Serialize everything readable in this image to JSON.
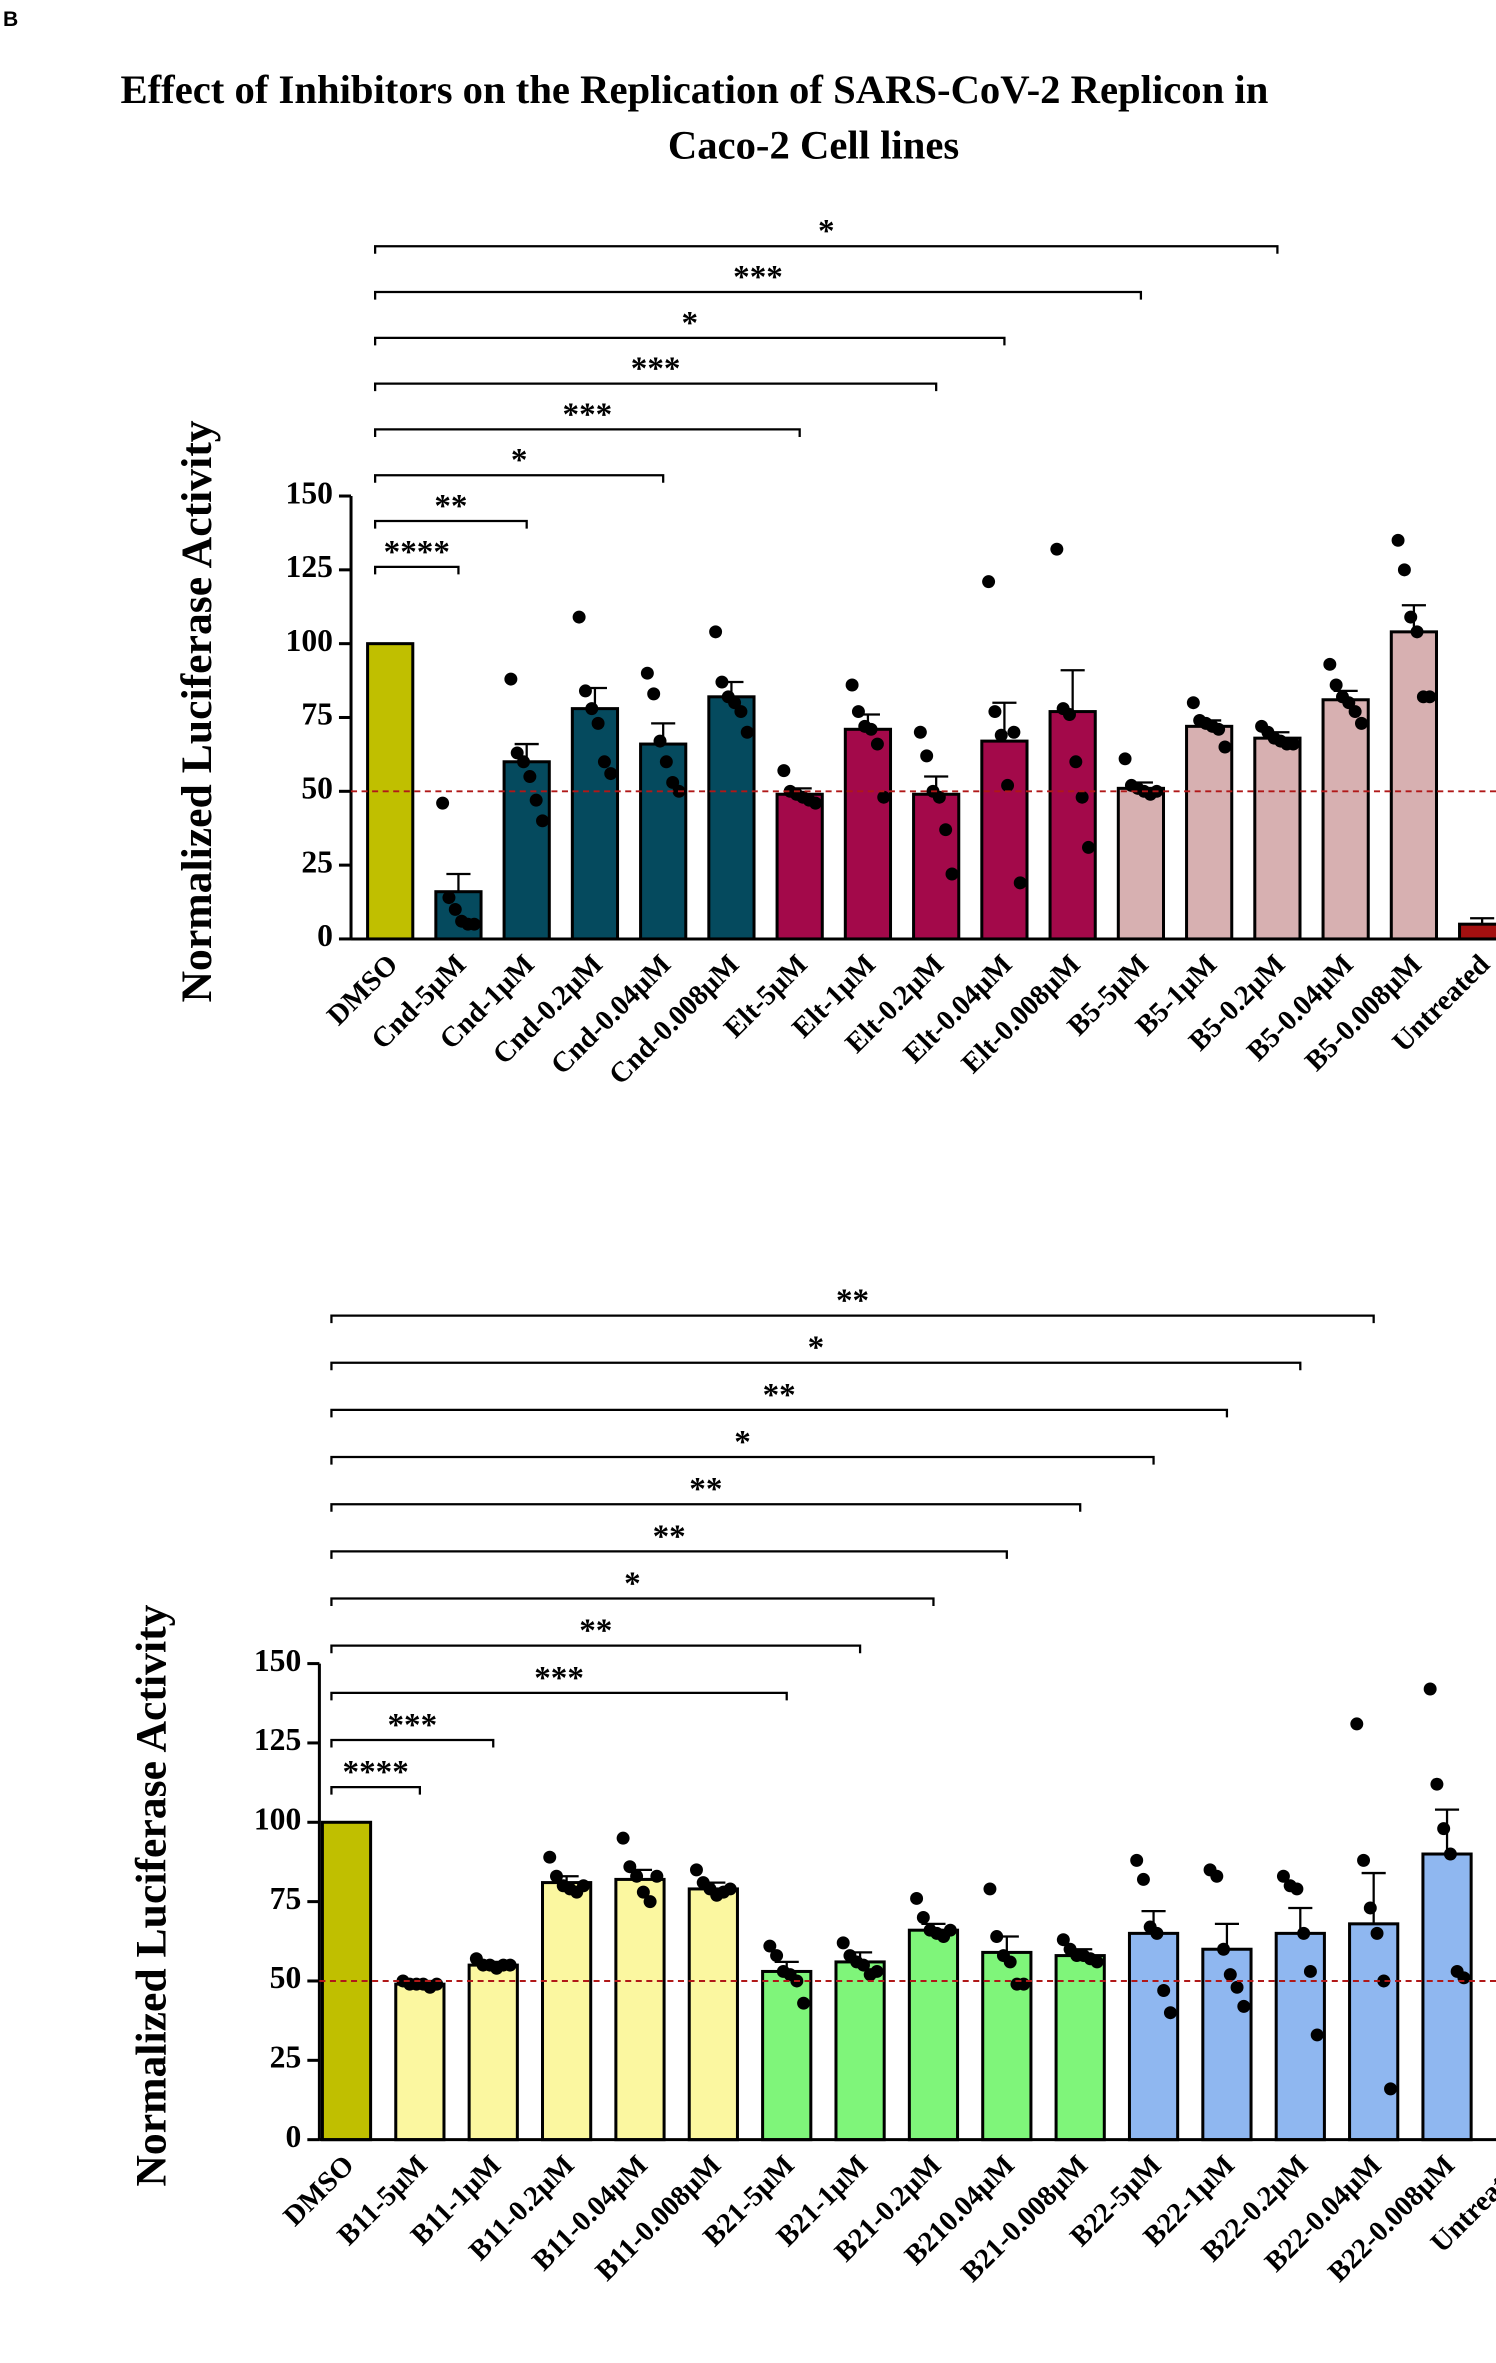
{
  "panel_label": "B",
  "chart_data": [
    {
      "type": "bar",
      "title": [
        "Effect of Inhibitors on the Replication of SARS-CoV-2 Replicon in",
        "Caco-2 Cell lines"
      ],
      "y_label": "Normalized Luciferase Activity",
      "categories": [
        "DMSO",
        "Cnd-5μM",
        "Cnd-1μM",
        "Cnd-0.2μM",
        "Cnd-0.04μM",
        "Cnd-0.008μM",
        "Elt-5μM",
        "Elt-1μM",
        "Elt-0.2μM",
        "Elt-0.04μM",
        "Elt-0.008μM",
        "B5-5μM",
        "B5-1μM",
        "B5-0.2μM",
        "B5-0.04μM",
        "B5-0.008μM",
        "Untreated"
      ],
      "values": [
        100,
        16,
        60,
        78,
        66,
        82,
        49,
        71,
        49,
        67,
        77,
        51,
        72,
        68,
        81,
        104,
        5
      ],
      "errors": [
        0,
        6,
        6,
        7,
        7,
        5,
        2,
        5,
        6,
        13,
        14,
        2,
        2,
        2,
        3,
        9,
        2
      ],
      "colors": [
        "#c0bf00",
        "#054a5e",
        "#054a5e",
        "#054a5e",
        "#054a5e",
        "#054a5e",
        "#a3094a",
        "#a3094a",
        "#a3094a",
        "#a3094a",
        "#a3094a",
        "#d7b0b1",
        "#d7b0b1",
        "#d7b0b1",
        "#d7b0b1",
        "#d7b0b1",
        "#a31010"
      ],
      "points": [
        [],
        [
          46,
          14,
          10,
          6,
          5,
          5
        ],
        [
          88,
          63,
          60,
          55,
          47,
          40
        ],
        [
          109,
          84,
          78,
          73,
          60,
          56
        ],
        [
          90,
          83,
          67,
          60,
          53,
          50
        ],
        [
          104,
          87,
          82,
          80,
          77,
          70
        ],
        [
          57,
          50,
          49,
          48,
          47,
          46
        ],
        [
          86,
          77,
          72,
          71,
          66,
          48
        ],
        [
          70,
          62,
          50,
          48,
          37,
          22
        ],
        [
          121,
          77,
          69,
          52,
          70,
          19
        ],
        [
          132,
          78,
          76,
          60,
          48,
          31
        ],
        [
          61,
          52,
          51,
          50,
          49,
          50
        ],
        [
          80,
          74,
          73,
          72,
          71,
          65
        ],
        [
          72,
          70,
          68,
          67,
          66,
          66
        ],
        [
          93,
          86,
          82,
          80,
          77,
          73
        ],
        [
          135,
          125,
          109,
          104,
          82,
          82
        ],
        []
      ],
      "reference_line": 50,
      "comparisons": [
        {
          "to": 1,
          "label": "****"
        },
        {
          "to": 2,
          "label": "**"
        },
        {
          "to": 4,
          "label": "*"
        },
        {
          "to": 6,
          "label": "***"
        },
        {
          "to": 8,
          "label": "***"
        },
        {
          "to": 9,
          "label": "*"
        },
        {
          "to": 11,
          "label": "***"
        },
        {
          "to": 13,
          "label": "*"
        }
      ],
      "ylim": [
        0,
        150
      ],
      "yticks": [
        0,
        25,
        50,
        75,
        100,
        125,
        150
      ]
    },
    {
      "type": "bar",
      "y_label": "Normalized Luciferase Activity",
      "categories": [
        "DMSO",
        "B11-5μM",
        "B11-1μM",
        "B11-0.2μM",
        "B11-0.04μM",
        "B11-0.008μM",
        "B21-5μM",
        "B21-1μM",
        "B21-0.2μM",
        "B210.04μM",
        "B21-0.008μM",
        "B22-5μM",
        "B22-1μM",
        "B22-0.2μM",
        "B22-0.04μM",
        "B22-0.008μM",
        "Untreated"
      ],
      "values": [
        100,
        49,
        55,
        81,
        82,
        79,
        53,
        56,
        66,
        59,
        58,
        65,
        60,
        65,
        68,
        90,
        null
      ],
      "errors": [
        0,
        1,
        1,
        2,
        3,
        2,
        3,
        3,
        2,
        5,
        2,
        7,
        8,
        8,
        16,
        14,
        null
      ],
      "colors": [
        "#c0bf00",
        "#fbf7a0",
        "#fbf7a0",
        "#fbf7a0",
        "#fbf7a0",
        "#fbf7a0",
        "#7ff57a",
        "#7ff57a",
        "#7ff57a",
        "#7ff57a",
        "#7ff57a",
        "#8fb7f0",
        "#8fb7f0",
        "#8fb7f0",
        "#8fb7f0",
        "#8fb7f0",
        null
      ],
      "points": [
        [],
        [
          50,
          49,
          49,
          49,
          48,
          49
        ],
        [
          57,
          55,
          55,
          54,
          55,
          55
        ],
        [
          89,
          83,
          80,
          79,
          78,
          80
        ],
        [
          95,
          86,
          83,
          78,
          75,
          83
        ],
        [
          85,
          81,
          79,
          77,
          78,
          79
        ],
        [
          61,
          58,
          53,
          52,
          50,
          43
        ],
        [
          62,
          58,
          56,
          55,
          52,
          53
        ],
        [
          76,
          70,
          66,
          65,
          64,
          66
        ],
        [
          79,
          64,
          58,
          56,
          49,
          49
        ],
        [
          63,
          60,
          58,
          58,
          57,
          56
        ],
        [
          88,
          82,
          67,
          65,
          47,
          40
        ],
        [
          85,
          83,
          60,
          52,
          48,
          42
        ],
        [
          83,
          80,
          79,
          65,
          53,
          33
        ],
        [
          131,
          88,
          73,
          65,
          50,
          16
        ],
        [
          142,
          112,
          98,
          90,
          53,
          51
        ],
        []
      ],
      "reference_line": 50,
      "comparisons": [
        {
          "to": 1,
          "label": "****"
        },
        {
          "to": 2,
          "label": "***"
        },
        {
          "to": 6,
          "label": "***"
        },
        {
          "to": 7,
          "label": "**"
        },
        {
          "to": 8,
          "label": "*"
        },
        {
          "to": 9,
          "label": "**"
        },
        {
          "to": 10,
          "label": "**"
        },
        {
          "to": 11,
          "label": "*"
        },
        {
          "to": 12,
          "label": "**"
        },
        {
          "to": 13,
          "label": "*"
        },
        {
          "to": 14,
          "label": "**"
        }
      ],
      "ylim": [
        0,
        150
      ],
      "yticks": [
        0,
        25,
        50,
        75,
        100,
        125,
        150
      ]
    }
  ]
}
